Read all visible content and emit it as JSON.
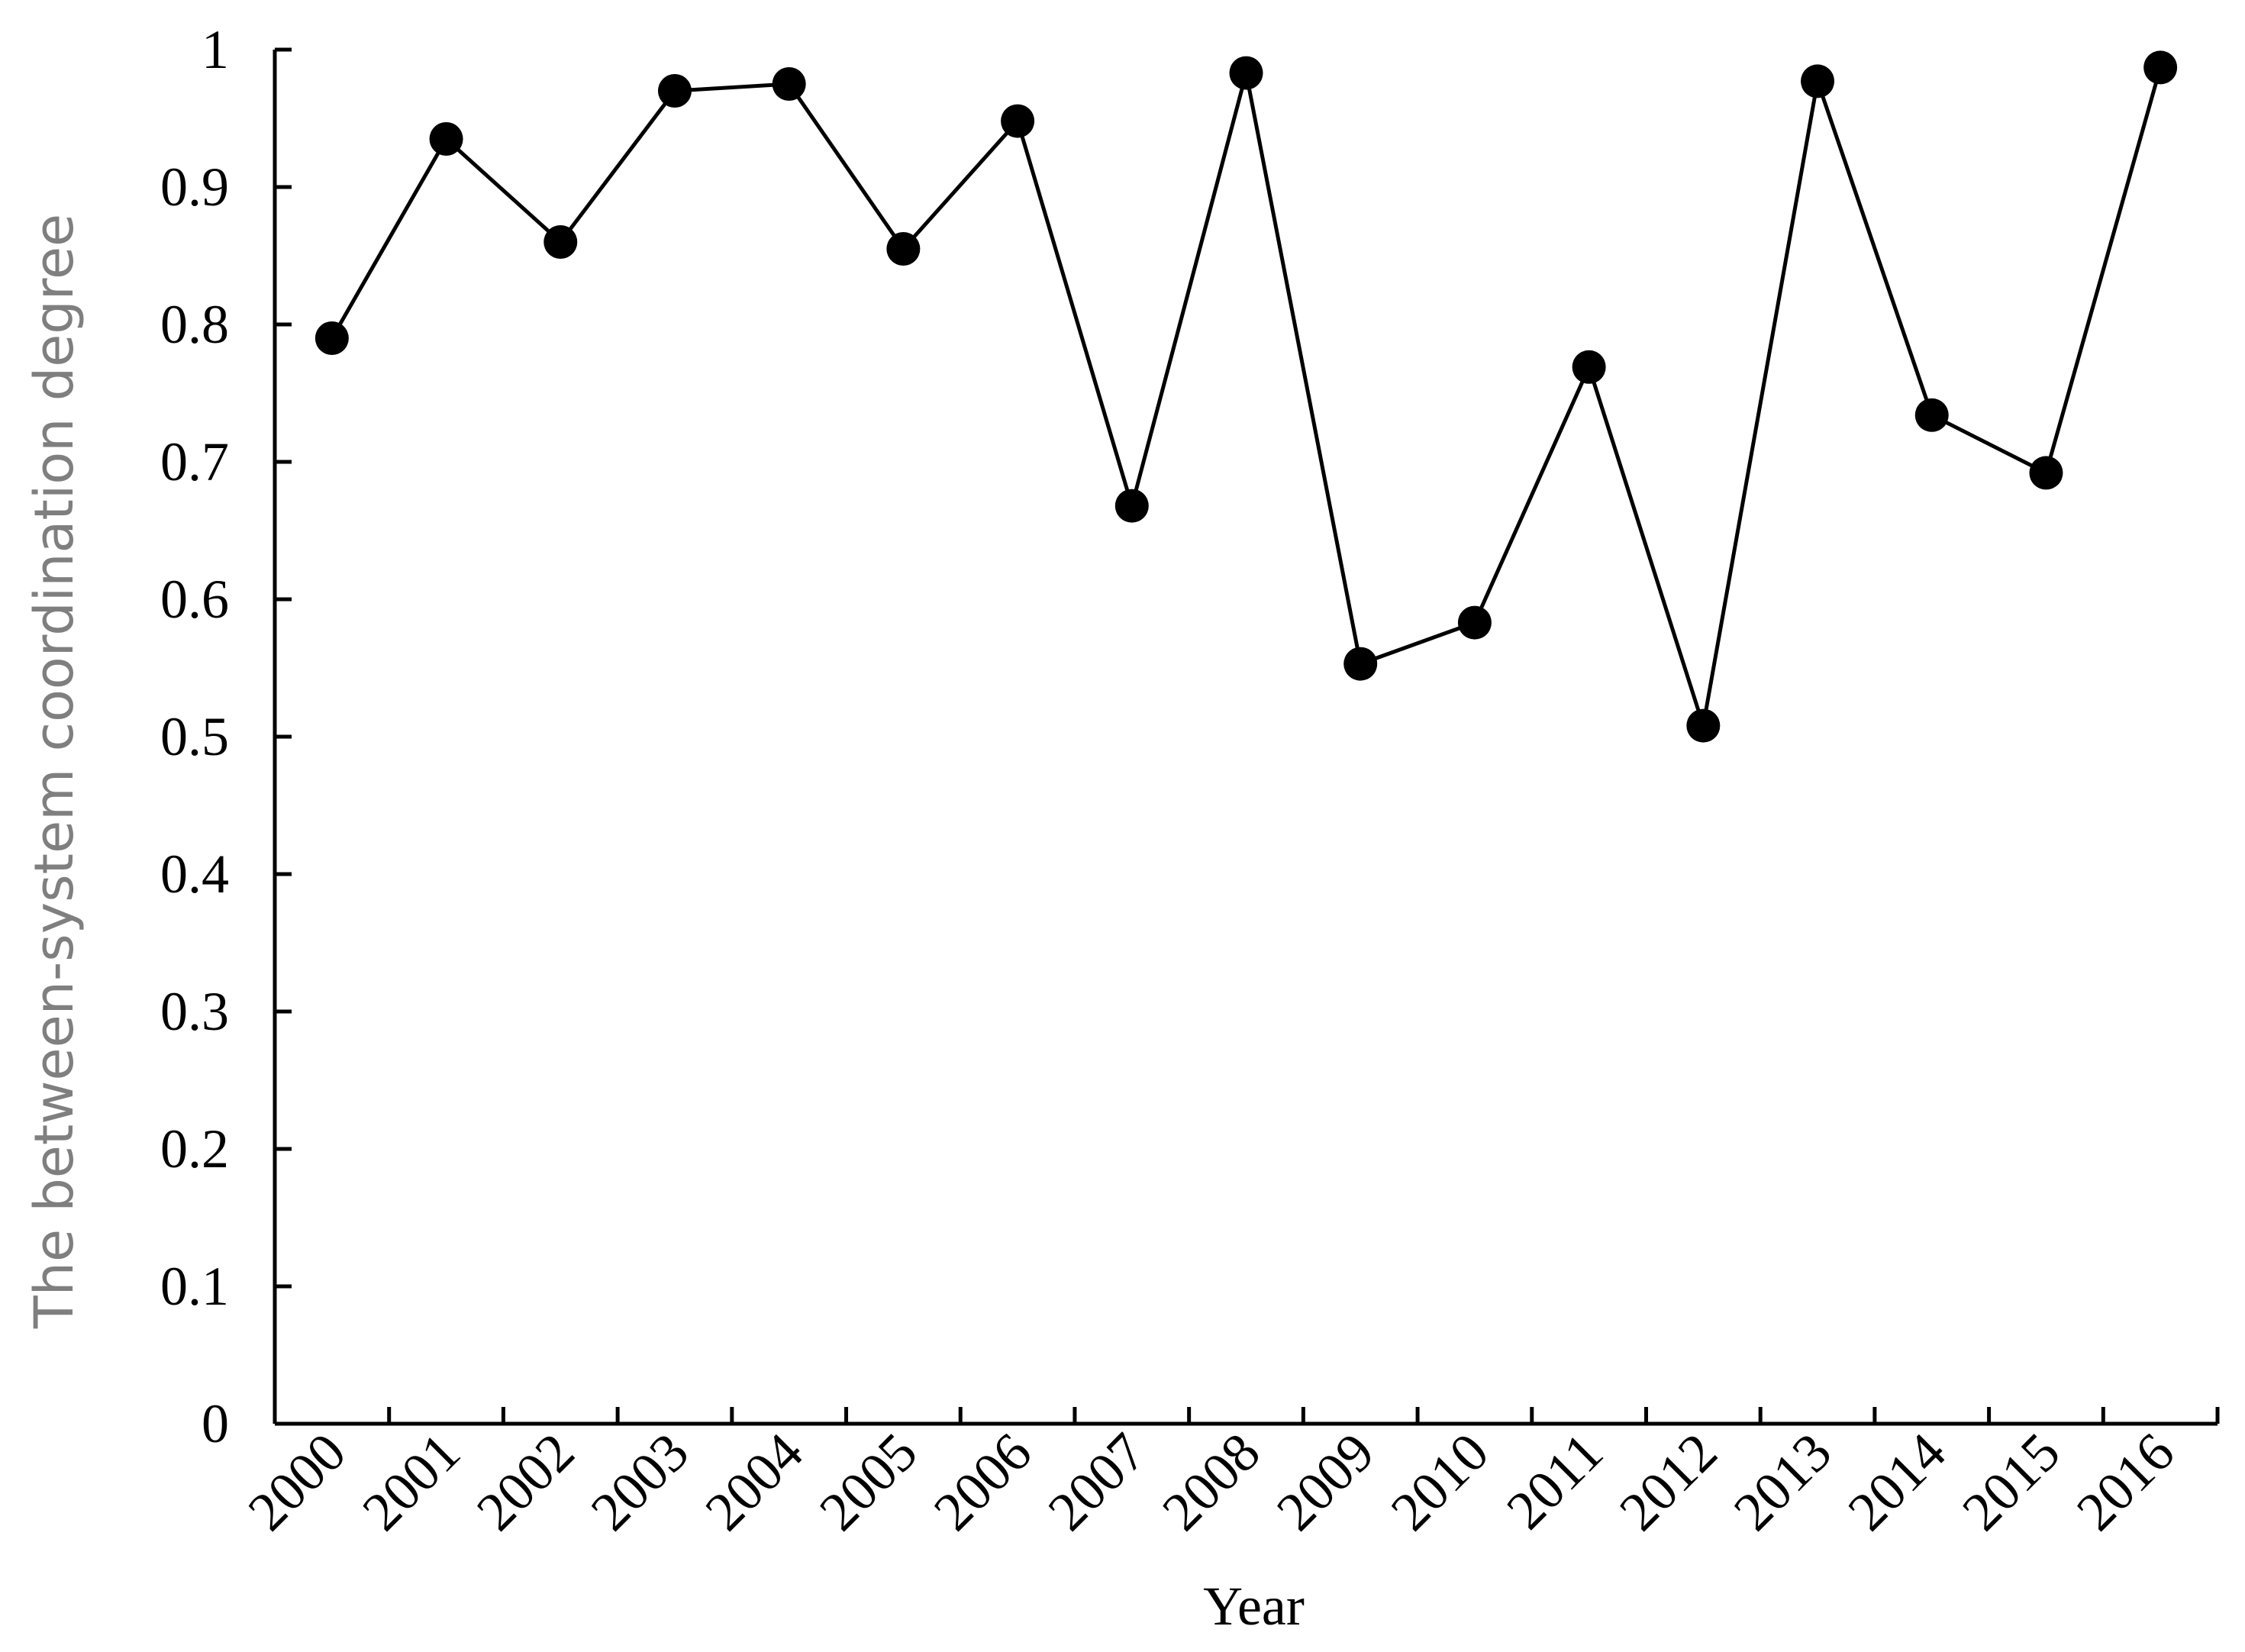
{
  "chart_data": {
    "type": "line",
    "title": "",
    "xlabel": "Year",
    "ylabel": "The between-system coordination degree",
    "categories": [
      "2000",
      "2001",
      "2002",
      "2003",
      "2004",
      "2005",
      "2006",
      "2007",
      "2008",
      "2009",
      "2010",
      "2011",
      "2012",
      "2013",
      "2014",
      "2015",
      "2016"
    ],
    "series": [
      {
        "values": [
          0.79,
          0.935,
          0.86,
          0.97,
          0.975,
          0.855,
          0.948,
          0.668,
          0.983,
          0.553,
          0.583,
          0.769,
          0.508,
          0.977,
          0.734,
          0.692,
          0.987
        ],
        "color": "#000000",
        "marker": "filled-circle"
      }
    ],
    "ylim": [
      0,
      1
    ],
    "yticks": [
      0,
      0.1,
      0.2,
      0.3,
      0.4,
      0.5,
      0.6,
      0.7,
      0.8,
      0.9,
      1
    ],
    "ytick_labels": [
      "0",
      "0.1",
      "0.2",
      "0.3",
      "0.4",
      "0.5",
      "0.6",
      "0.7",
      "0.8",
      "0.9",
      "1"
    ],
    "grid": false,
    "legend": "none",
    "xtick_rotation": "diagonal"
  }
}
